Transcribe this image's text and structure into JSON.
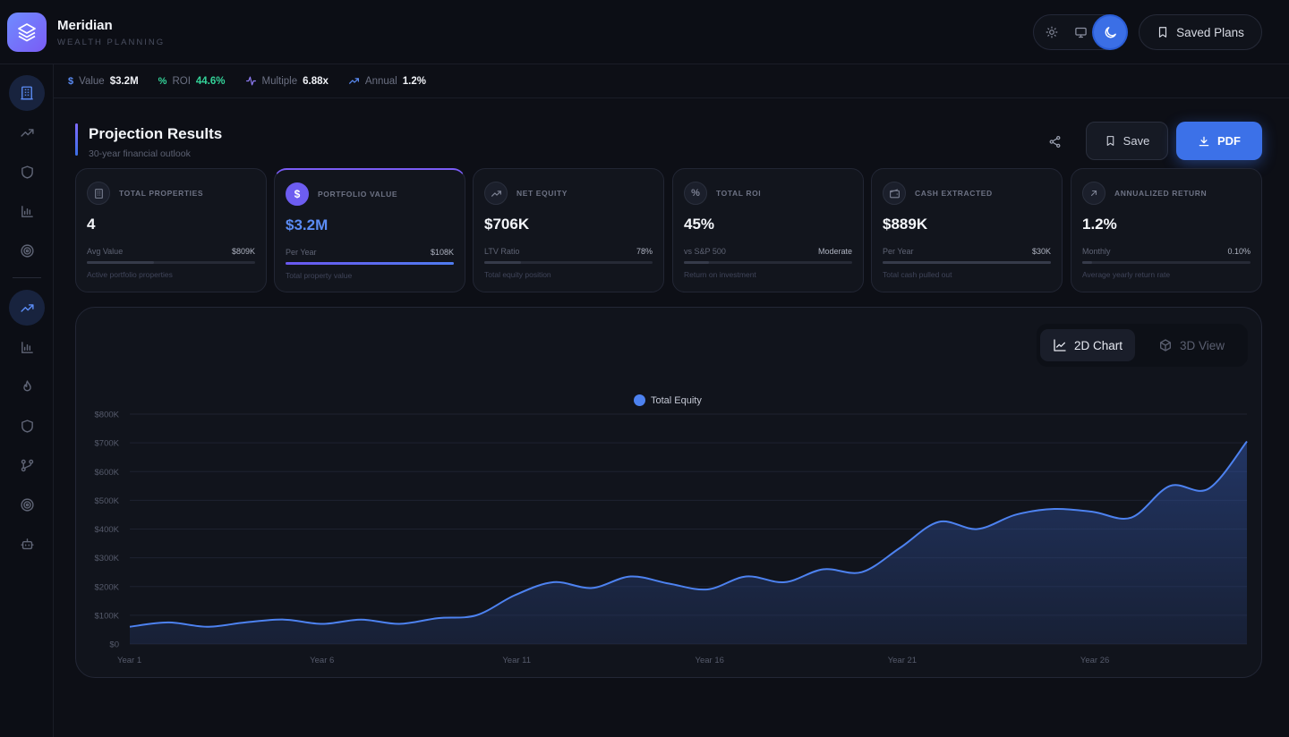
{
  "brand": {
    "name": "Meridian",
    "subtitle": "WEALTH PLANNING"
  },
  "header": {
    "theme_options": [
      "sun-icon",
      "monitor-icon",
      "moon-icon"
    ],
    "active_theme": "moon-icon",
    "saved_plans_label": "Saved Plans"
  },
  "stats_strip": [
    {
      "icon": "dollar-icon",
      "label": "Value",
      "value": "$3.2M",
      "color": "#f0f2f7"
    },
    {
      "icon": "percent-icon",
      "label": "ROI",
      "value": "44.6%",
      "color": "#34d399"
    },
    {
      "icon": "activity-icon",
      "label": "Multiple",
      "value": "6.88x",
      "color": "#f0f2f7"
    },
    {
      "icon": "trend-up-icon",
      "label": "Annual",
      "value": "1.2%",
      "color": "#f0f2f7"
    }
  ],
  "sidebar": {
    "top_items": [
      "building-icon",
      "trend-up-icon",
      "shield-icon",
      "bar-chart-icon",
      "target-icon"
    ],
    "bottom_items": [
      "trend-up-icon",
      "bar-chart-icon",
      "flame-icon",
      "shield-icon",
      "git-branch-icon",
      "target-icon",
      "bot-icon"
    ]
  },
  "section": {
    "title": "Projection Results",
    "subtitle": "30-year financial outlook"
  },
  "actions": {
    "save_label": "Save",
    "pdf_label": "PDF"
  },
  "cards": [
    {
      "icon": "building-icon",
      "label": "TOTAL PROPERTIES",
      "value": "4",
      "metric_label": "Avg Value",
      "metric_value": "$809K",
      "bar": 0.4,
      "desc": "Active portfolio properties"
    },
    {
      "icon": "dollar-icon",
      "label": "PORTFOLIO VALUE",
      "value": "$3.2M",
      "metric_label": "Per Year",
      "metric_value": "$108K",
      "bar": 1.0,
      "desc": "Total property value"
    },
    {
      "icon": "trend-up-icon",
      "label": "NET EQUITY",
      "value": "$706K",
      "metric_label": "LTV Ratio",
      "metric_value": "78%",
      "bar": 0.22,
      "desc": "Total equity position"
    },
    {
      "icon": "percent-icon",
      "label": "TOTAL ROI",
      "value": "45%",
      "metric_label": "vs S&P 500",
      "metric_value": "Moderate",
      "bar": 0.15,
      "desc": "Return on investment"
    },
    {
      "icon": "wallet-icon",
      "label": "CASH EXTRACTED",
      "value": "$889K",
      "metric_label": "Per Year",
      "metric_value": "$30K",
      "bar": 1.0,
      "desc": "Total cash pulled out"
    },
    {
      "icon": "arrow-up-right-icon",
      "label": "ANNUALIZED RETURN",
      "value": "1.2%",
      "metric_label": "Monthly",
      "metric_value": "0.10%",
      "bar": 0.06,
      "desc": "Average yearly return rate"
    }
  ],
  "view_toggle": {
    "active": "2D Chart",
    "inactive": "3D View"
  },
  "chart_data": {
    "type": "area",
    "x": [
      1,
      2,
      3,
      4,
      5,
      6,
      7,
      8,
      9,
      10,
      11,
      12,
      13,
      14,
      15,
      16,
      17,
      18,
      19,
      20,
      21,
      22,
      23,
      24,
      25,
      26,
      27,
      28,
      29,
      30
    ],
    "x_tick_labels": [
      "Year 1",
      "Year 6",
      "Year 11",
      "Year 16",
      "Year 21",
      "Year 26"
    ],
    "x_ticks": [
      1,
      6,
      11,
      16,
      21,
      26
    ],
    "series": [
      {
        "name": "Total Equity",
        "color": "#4d82f0",
        "values": [
          60,
          75,
          60,
          75,
          85,
          70,
          85,
          70,
          90,
          100,
          170,
          215,
          195,
          235,
          210,
          190,
          235,
          215,
          260,
          250,
          335,
          425,
          400,
          450,
          470,
          460,
          440,
          550,
          540,
          705
        ]
      }
    ],
    "ylim": [
      0,
      800
    ],
    "y_ticks": [
      0,
      100,
      200,
      300,
      400,
      500,
      600,
      700,
      800
    ],
    "y_tick_labels": [
      "$0",
      "$100K",
      "$200K",
      "$300K",
      "$400K",
      "$500K",
      "$600K",
      "$700K",
      "$800K"
    ],
    "grid": true,
    "legend": "top-center"
  }
}
